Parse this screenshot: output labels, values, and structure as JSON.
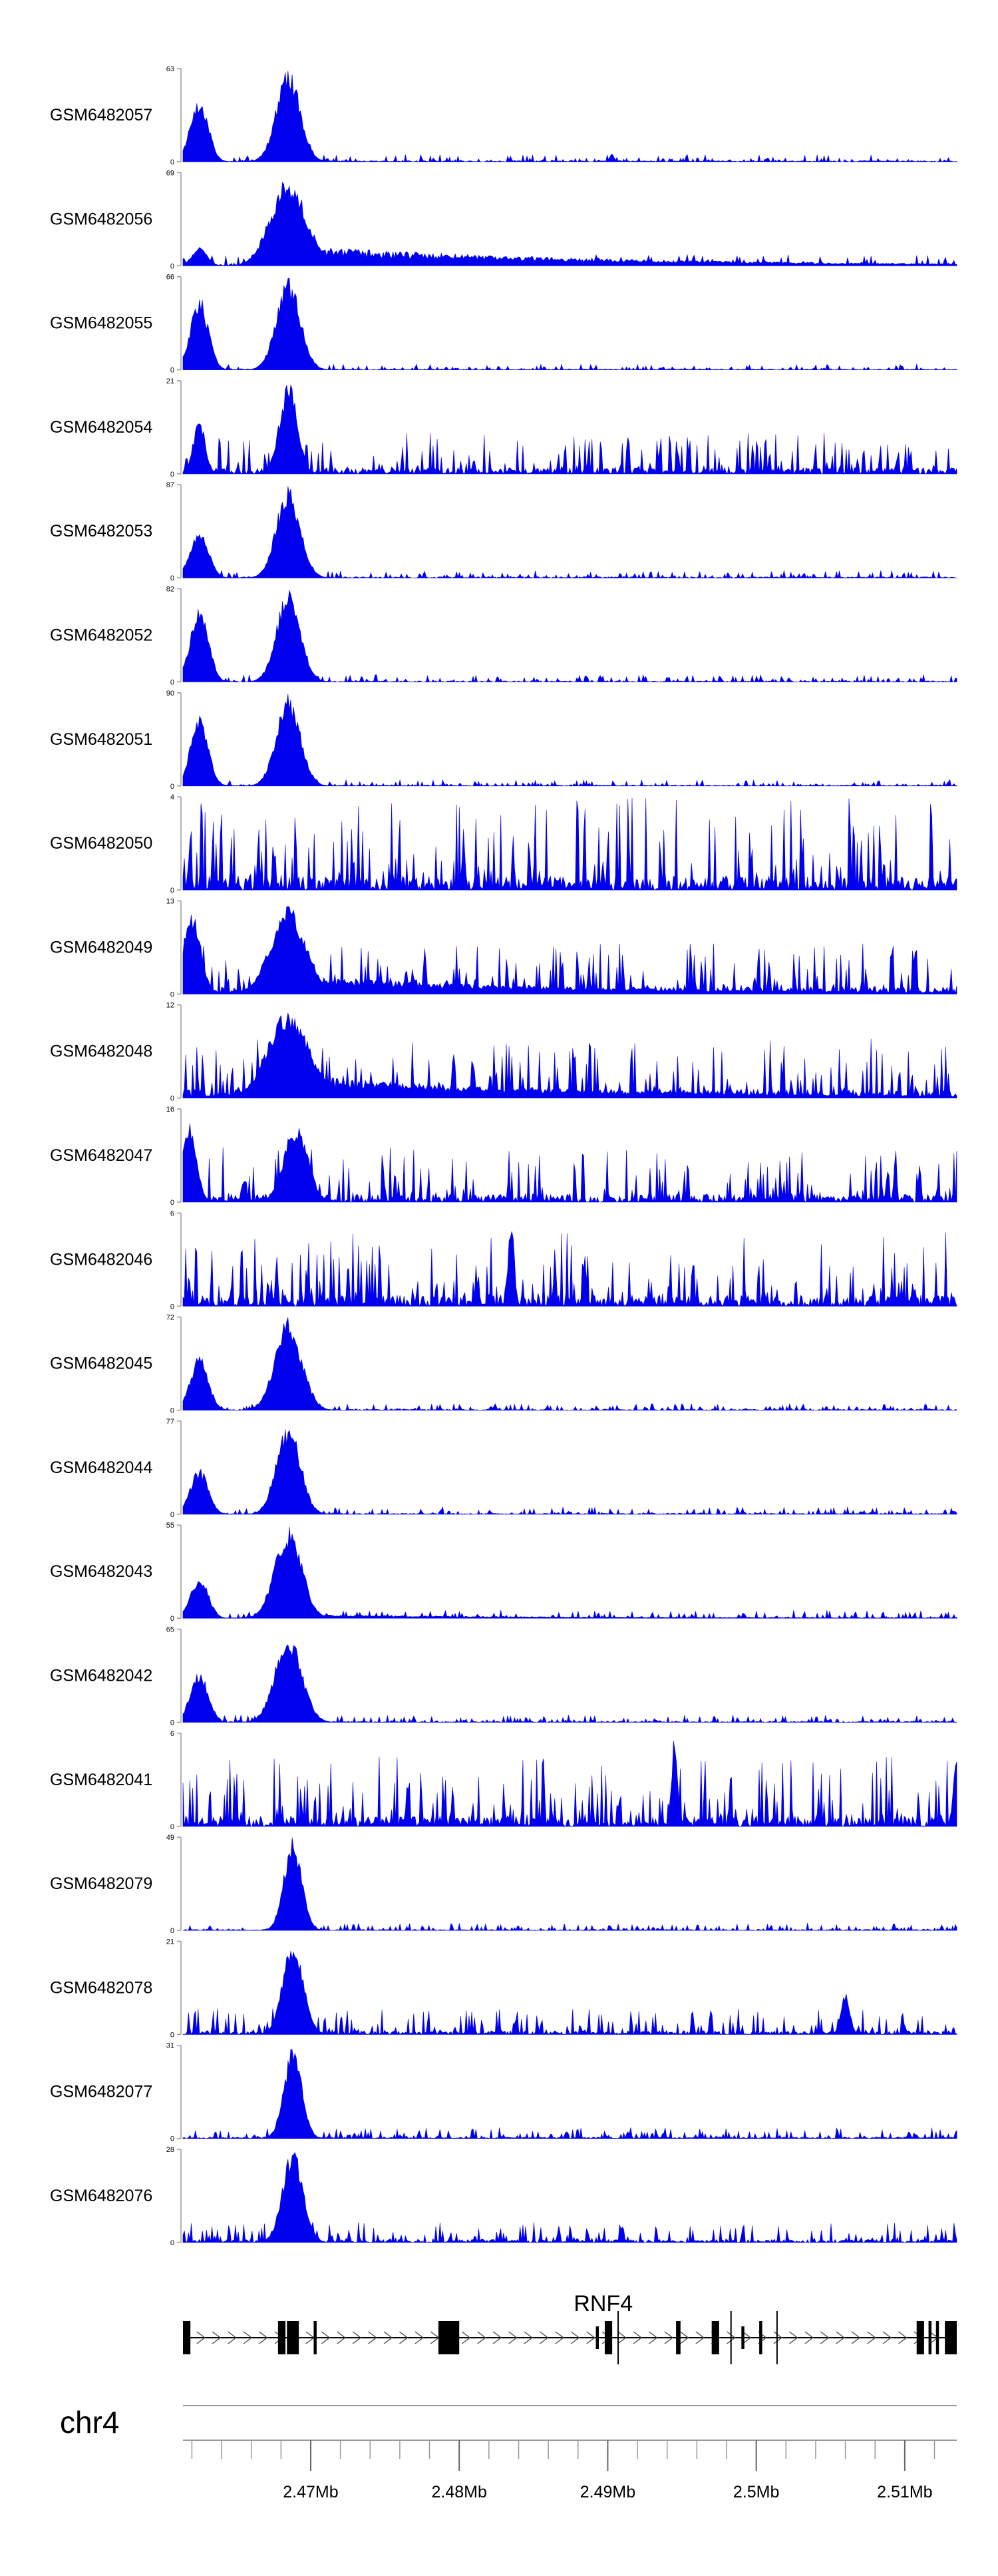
{
  "chart_data": {
    "type": "area",
    "chromosome": "chr4",
    "x_range_mb": [
      2.4614,
      2.5135
    ],
    "series": [
      {
        "name": "GSM6482057",
        "ymax": 63,
        "ymin": 0,
        "peaks": [
          {
            "x": 2.4625,
            "h": 0.7,
            "w": 0.0006
          },
          {
            "x": 2.4685,
            "h": 1.0,
            "w": 0.0008
          }
        ],
        "noise": 0.08,
        "tail": 0
      },
      {
        "name": "GSM6482056",
        "ymax": 69,
        "ymin": 0,
        "peaks": [
          {
            "x": 2.4625,
            "h": 0.2,
            "w": 0.0005
          },
          {
            "x": 2.4685,
            "h": 0.95,
            "w": 0.0012
          }
        ],
        "noise": 0.12,
        "tail": 0.22
      },
      {
        "name": "GSM6482055",
        "ymax": 66,
        "ymin": 0,
        "peaks": [
          {
            "x": 2.4625,
            "h": 0.8,
            "w": 0.0006
          },
          {
            "x": 2.4685,
            "h": 1.0,
            "w": 0.0008
          }
        ],
        "noise": 0.06,
        "tail": 0
      },
      {
        "name": "GSM6482054",
        "ymax": 21,
        "ymin": 0,
        "peaks": [
          {
            "x": 2.4625,
            "h": 0.6,
            "w": 0.0004
          },
          {
            "x": 2.4685,
            "h": 1.0,
            "w": 0.0006
          }
        ],
        "noise": 0.45,
        "tail": 0
      },
      {
        "name": "GSM6482053",
        "ymax": 87,
        "ymin": 0,
        "peaks": [
          {
            "x": 2.4625,
            "h": 0.55,
            "w": 0.0006
          },
          {
            "x": 2.4685,
            "h": 1.0,
            "w": 0.0008
          }
        ],
        "noise": 0.08,
        "tail": 0
      },
      {
        "name": "GSM6482052",
        "ymax": 82,
        "ymin": 0,
        "peaks": [
          {
            "x": 2.4625,
            "h": 0.85,
            "w": 0.0006
          },
          {
            "x": 2.4685,
            "h": 1.0,
            "w": 0.0008
          }
        ],
        "noise": 0.08,
        "tail": 0
      },
      {
        "name": "GSM6482051",
        "ymax": 90,
        "ymin": 0,
        "peaks": [
          {
            "x": 2.4625,
            "h": 0.75,
            "w": 0.0006
          },
          {
            "x": 2.4685,
            "h": 1.0,
            "w": 0.0008
          }
        ],
        "noise": 0.07,
        "tail": 0
      },
      {
        "name": "GSM6482050",
        "ymax": 4,
        "ymin": 0,
        "peaks": [],
        "noise": 1.0,
        "tail": 0
      },
      {
        "name": "GSM6482049",
        "ymax": 13,
        "ymin": 0,
        "peaks": [
          {
            "x": 2.462,
            "h": 0.9,
            "w": 0.0006
          },
          {
            "x": 2.4685,
            "h": 0.95,
            "w": 0.0012
          }
        ],
        "noise": 0.55,
        "tail": 0.2
      },
      {
        "name": "GSM6482048",
        "ymax": 12,
        "ymin": 0,
        "peaks": [
          {
            "x": 2.4685,
            "h": 0.95,
            "w": 0.0014
          }
        ],
        "noise": 0.65,
        "tail": 0.25
      },
      {
        "name": "GSM6482047",
        "ymax": 16,
        "ymin": 0,
        "peaks": [
          {
            "x": 2.4618,
            "h": 0.9,
            "w": 0.0005
          },
          {
            "x": 2.469,
            "h": 0.85,
            "w": 0.0008
          }
        ],
        "noise": 0.6,
        "tail": 0
      },
      {
        "name": "GSM6482046",
        "ymax": 6,
        "ymin": 0,
        "peaks": [
          {
            "x": 2.4835,
            "h": 1.0,
            "w": 0.0002
          }
        ],
        "noise": 0.8,
        "tail": 0
      },
      {
        "name": "GSM6482045",
        "ymax": 72,
        "ymin": 0,
        "peaks": [
          {
            "x": 2.4625,
            "h": 0.6,
            "w": 0.0006
          },
          {
            "x": 2.4685,
            "h": 1.0,
            "w": 0.0009
          }
        ],
        "noise": 0.07,
        "tail": 0
      },
      {
        "name": "GSM6482044",
        "ymax": 77,
        "ymin": 0,
        "peaks": [
          {
            "x": 2.4625,
            "h": 0.5,
            "w": 0.0006
          },
          {
            "x": 2.4685,
            "h": 1.0,
            "w": 0.0008
          }
        ],
        "noise": 0.08,
        "tail": 0
      },
      {
        "name": "GSM6482043",
        "ymax": 55,
        "ymin": 0,
        "peaks": [
          {
            "x": 2.4625,
            "h": 0.45,
            "w": 0.0006
          },
          {
            "x": 2.4685,
            "h": 1.0,
            "w": 0.0009
          }
        ],
        "noise": 0.09,
        "tail": 0.04
      },
      {
        "name": "GSM6482042",
        "ymax": 65,
        "ymin": 0,
        "peaks": [
          {
            "x": 2.4625,
            "h": 0.55,
            "w": 0.0006
          },
          {
            "x": 2.4685,
            "h": 0.95,
            "w": 0.0009
          }
        ],
        "noise": 0.08,
        "tail": 0
      },
      {
        "name": "GSM6482041",
        "ymax": 6,
        "ymin": 0,
        "peaks": [
          {
            "x": 2.4945,
            "h": 1.0,
            "w": 0.0002
          },
          {
            "x": 2.5135,
            "h": 0.9,
            "w": 0.0002
          }
        ],
        "noise": 0.75,
        "tail": 0
      },
      {
        "name": "GSM6482079",
        "ymax": 49,
        "ymin": 0,
        "peaks": [
          {
            "x": 2.4688,
            "h": 1.0,
            "w": 0.0006
          }
        ],
        "noise": 0.08,
        "tail": 0
      },
      {
        "name": "GSM6482078",
        "ymax": 21,
        "ymin": 0,
        "peaks": [
          {
            "x": 2.4688,
            "h": 1.0,
            "w": 0.0007
          },
          {
            "x": 2.506,
            "h": 0.45,
            "w": 0.0003
          }
        ],
        "noise": 0.28,
        "tail": 0
      },
      {
        "name": "GSM6482077",
        "ymax": 31,
        "ymin": 0,
        "peaks": [
          {
            "x": 2.4688,
            "h": 1.0,
            "w": 0.0006
          }
        ],
        "noise": 0.12,
        "tail": 0
      },
      {
        "name": "GSM6482076",
        "ymax": 28,
        "ymin": 0,
        "peaks": [
          {
            "x": 2.4688,
            "h": 1.0,
            "w": 0.0007
          }
        ],
        "noise": 0.22,
        "tail": 0
      }
    ],
    "fill_color": "#0000ee",
    "gene": {
      "name": "RNF4",
      "strand": "+",
      "start": 2.4614,
      "end": 2.5135,
      "exons": [
        {
          "s": 2.4614,
          "e": 2.4619,
          "tall": true
        },
        {
          "s": 2.4678,
          "e": 2.4683,
          "tall": true
        },
        {
          "s": 2.4684,
          "e": 2.4692,
          "tall": true
        },
        {
          "s": 2.4702,
          "e": 2.4704,
          "tall": true
        },
        {
          "s": 2.4786,
          "e": 2.48,
          "tall": true
        },
        {
          "s": 2.4892,
          "e": 2.4894,
          "tall": false
        },
        {
          "s": 2.4898,
          "e": 2.4903,
          "tall": true
        },
        {
          "s": 2.4946,
          "e": 2.4949,
          "tall": true
        },
        {
          "s": 2.497,
          "e": 2.4975,
          "tall": true
        },
        {
          "s": 2.499,
          "e": 2.4992,
          "tall": false
        },
        {
          "s": 2.5002,
          "e": 2.5004,
          "tall": true
        },
        {
          "s": 2.5108,
          "e": 2.5113,
          "tall": true
        },
        {
          "s": 2.5116,
          "e": 2.5118,
          "tall": true
        },
        {
          "s": 2.5121,
          "e": 2.5123,
          "tall": true
        },
        {
          "s": 2.5127,
          "e": 2.5135,
          "tall": true
        }
      ],
      "thin_marks": [
        2.4907,
        2.4983,
        2.5014
      ]
    },
    "axis": {
      "minor_ticks": [
        2.462,
        2.464,
        2.466,
        2.468,
        2.47,
        2.472,
        2.474,
        2.476,
        2.478,
        2.48,
        2.482,
        2.484,
        2.486,
        2.488,
        2.49,
        2.492,
        2.494,
        2.496,
        2.498,
        2.5,
        2.502,
        2.504,
        2.506,
        2.508,
        2.51,
        2.512
      ],
      "major_ticks": [
        {
          "x": 2.47,
          "label": "2.47Mb"
        },
        {
          "x": 2.48,
          "label": "2.48Mb"
        },
        {
          "x": 2.49,
          "label": "2.49Mb"
        },
        {
          "x": 2.5,
          "label": "2.5Mb"
        },
        {
          "x": 2.51,
          "label": "2.51Mb"
        }
      ]
    }
  }
}
